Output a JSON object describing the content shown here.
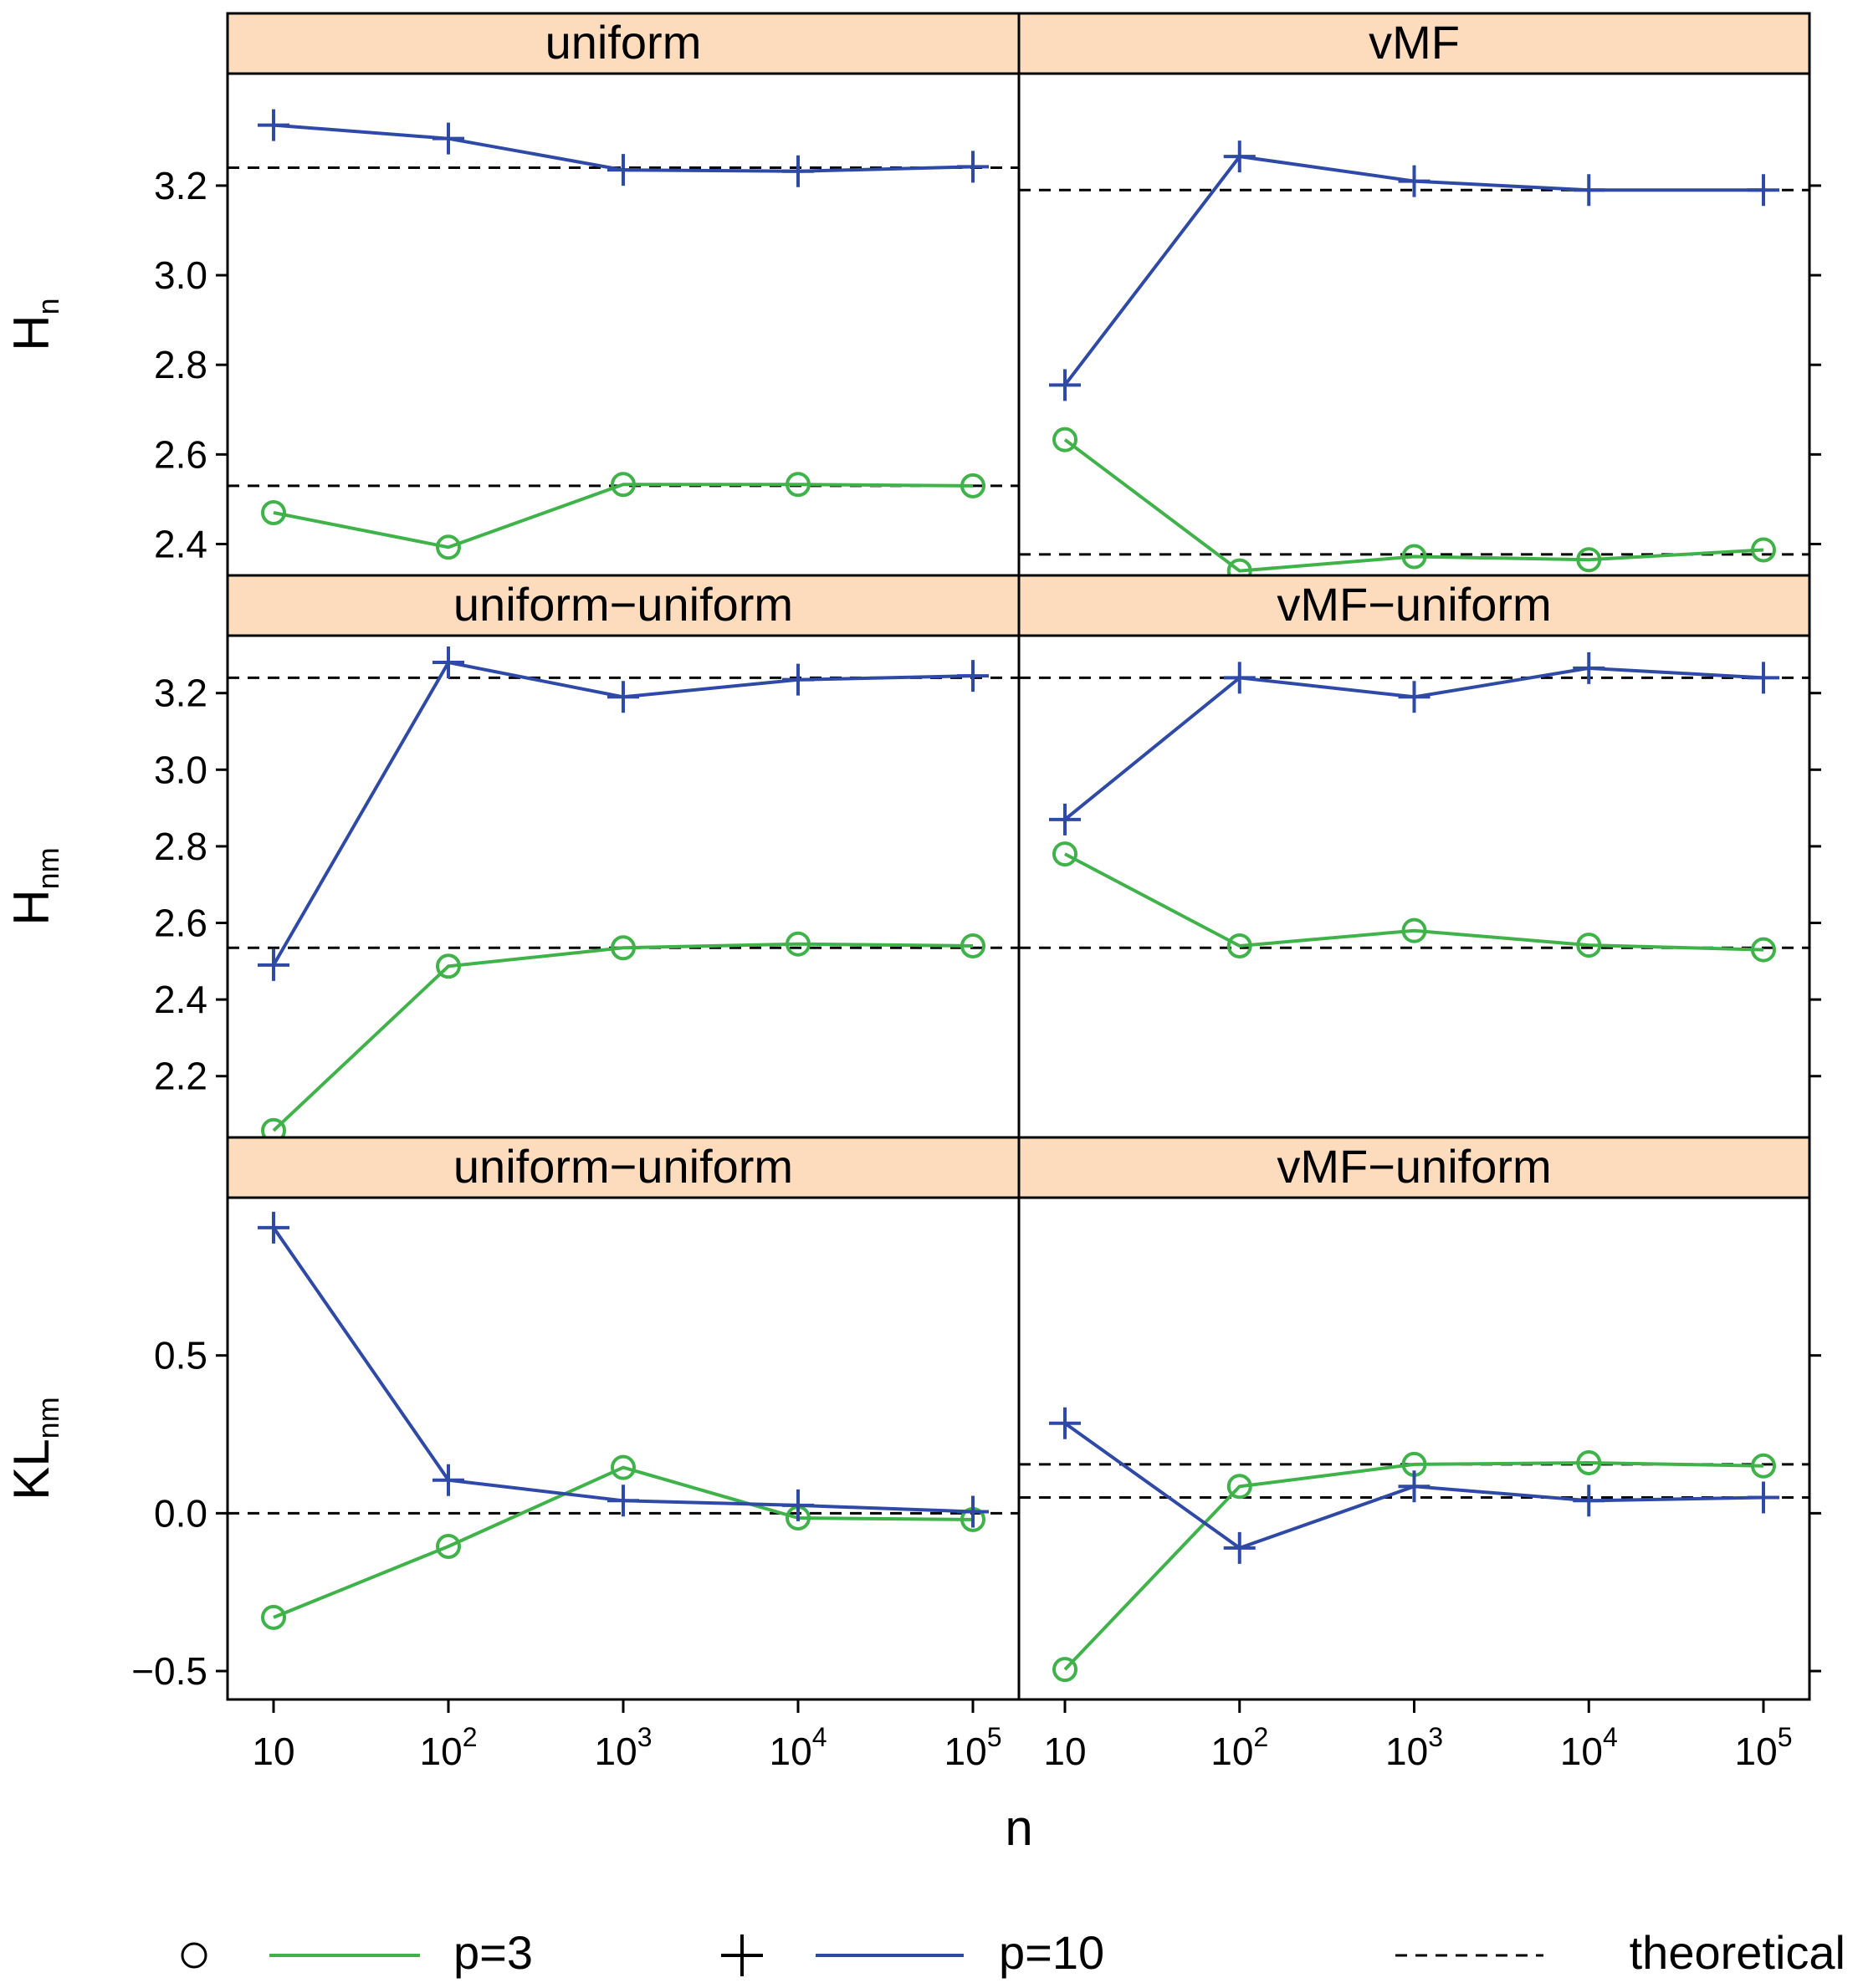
{
  "chart_data": {
    "type": "line",
    "title": "",
    "xlabel": "n",
    "x": [
      10,
      100,
      1000,
      10000,
      100000
    ],
    "x_tick_labels": [
      {
        "base": "10",
        "exp": ""
      },
      {
        "base": "10",
        "exp": "2"
      },
      {
        "base": "10",
        "exp": "3"
      },
      {
        "base": "10",
        "exp": "4"
      },
      {
        "base": "10",
        "exp": "5"
      }
    ],
    "x_scale": "log10",
    "legend": {
      "position": "bottom",
      "entries": [
        {
          "label": "p=3",
          "symbol": "circle",
          "color": "#3fb349",
          "line": "solid"
        },
        {
          "label": "p=10",
          "symbol": "plus",
          "color": "#2f4aa6",
          "line": "solid"
        },
        {
          "label": "theoretical",
          "symbol": "",
          "color": "#000000",
          "line": "dashed"
        }
      ]
    },
    "colors": {
      "p3": "#3fb349",
      "p10": "#2f4aa6",
      "theoretical": "#000000",
      "strip": "#fddcbd"
    },
    "rows": [
      {
        "ylabel": {
          "base": "H",
          "sub": "n"
        },
        "ylim": [
          2.33,
          3.45
        ],
        "yticks": [
          2.4,
          2.6,
          2.8,
          3.0,
          3.2
        ],
        "ytick_labels": [
          "2.4",
          "2.6",
          "2.8",
          "3.0",
          "3.2"
        ],
        "panels": [
          {
            "strip": "uniform",
            "series": [
              {
                "name": "p=3",
                "values": [
                  2.47,
                  2.393,
                  2.533,
                  2.533,
                  2.53
                ]
              },
              {
                "name": "p=10",
                "values": [
                  3.335,
                  3.305,
                  3.235,
                  3.232,
                  3.242
                ]
              }
            ],
            "theoretical": [
              2.53,
              3.24
            ]
          },
          {
            "strip": "vMF",
            "series": [
              {
                "name": "p=3",
                "values": [
                  2.633,
                  2.34,
                  2.372,
                  2.365,
                  2.387
                ]
              },
              {
                "name": "p=10",
                "values": [
                  2.755,
                  3.265,
                  3.21,
                  3.19,
                  3.19
                ]
              }
            ],
            "theoretical": [
              2.377,
              3.19
            ]
          }
        ]
      },
      {
        "ylabel": {
          "base": "H",
          "sub": "nm"
        },
        "ylim": [
          2.04,
          3.35
        ],
        "yticks": [
          2.2,
          2.4,
          2.6,
          2.8,
          3.0,
          3.2
        ],
        "ytick_labels": [
          "2.2",
          "2.4",
          "2.6",
          "2.8",
          "3.0",
          "3.2"
        ],
        "panels": [
          {
            "strip": "uniform−uniform",
            "series": [
              {
                "name": "p=3",
                "values": [
                  2.058,
                  2.487,
                  2.535,
                  2.545,
                  2.54
                ]
              },
              {
                "name": "p=10",
                "values": [
                  2.49,
                  3.28,
                  3.19,
                  3.235,
                  3.245
                ]
              }
            ],
            "theoretical": [
              2.535,
              3.24
            ]
          },
          {
            "strip": "vMF−uniform",
            "series": [
              {
                "name": "p=3",
                "values": [
                  2.78,
                  2.54,
                  2.58,
                  2.542,
                  2.53
                ]
              },
              {
                "name": "p=10",
                "values": [
                  2.87,
                  3.24,
                  3.19,
                  3.265,
                  3.24
                ]
              }
            ],
            "theoretical": [
              2.535,
              3.24
            ]
          }
        ]
      },
      {
        "ylabel": {
          "base": "KL",
          "sub": "nm"
        },
        "ylim": [
          -0.59,
          1.0
        ],
        "yticks": [
          -0.5,
          0.0,
          0.5
        ],
        "ytick_labels": [
          "−0.5",
          "0.0",
          "0.5"
        ],
        "panels": [
          {
            "strip": "uniform−uniform",
            "series": [
              {
                "name": "p=3",
                "values": [
                  -0.33,
                  -0.105,
                  0.145,
                  -0.015,
                  -0.02
                ]
              },
              {
                "name": "p=10",
                "values": [
                  0.905,
                  0.105,
                  0.04,
                  0.025,
                  0.005
                ]
              }
            ],
            "theoretical": [
              0.0
            ]
          },
          {
            "strip": "vMF−uniform",
            "series": [
              {
                "name": "p=3",
                "values": [
                  -0.495,
                  0.085,
                  0.155,
                  0.16,
                  0.15
                ]
              },
              {
                "name": "p=10",
                "values": [
                  0.285,
                  -0.11,
                  0.085,
                  0.04,
                  0.05
                ]
              }
            ],
            "theoretical": [
              0.155,
              0.05
            ]
          }
        ]
      }
    ]
  }
}
